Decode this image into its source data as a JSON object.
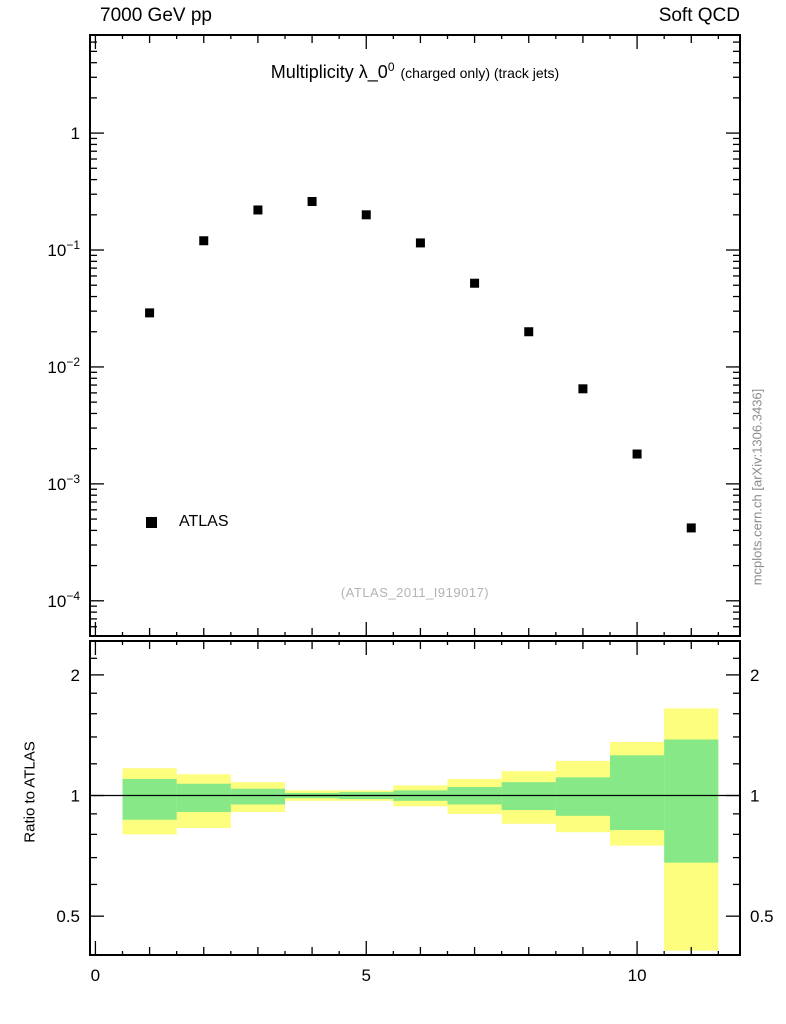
{
  "chart_data": {
    "type": "scatter",
    "header_left": "7000 GeV pp",
    "header_right": "Soft QCD",
    "title_main": "Multiplicity λ_0",
    "title_sup": "0",
    "title_suffix": "(charged only) (track jets)",
    "watermark": "(ATLAS_2011_I919017)",
    "side_caption": "mcplots.cern.ch [arXiv:1306.3436]",
    "series": [
      {
        "name": "ATLAS",
        "marker": "filled-square",
        "color": "#000000",
        "x": [
          1,
          2,
          3,
          4,
          5,
          6,
          7,
          8,
          9,
          10,
          11
        ],
        "y": [
          0.029,
          0.12,
          0.22,
          0.26,
          0.2,
          0.115,
          0.052,
          0.02,
          0.0065,
          0.0018,
          0.00042
        ]
      }
    ],
    "x_axis": {
      "range": [
        -0.1,
        11.9
      ],
      "major_ticks": [
        0,
        5,
        10
      ],
      "labels": [
        "0",
        "5",
        "10"
      ]
    },
    "y_axis": {
      "scale": "log",
      "range": [
        5e-05,
        6.9
      ],
      "ticks": [
        {
          "v": 1,
          "label": "1"
        },
        {
          "v": 0.1,
          "base": "10",
          "exp": "−1"
        },
        {
          "v": 0.01,
          "base": "10",
          "exp": "−2"
        },
        {
          "v": 0.001,
          "base": "10",
          "exp": "−3"
        },
        {
          "v": 0.0001,
          "base": "10",
          "exp": "−4"
        }
      ]
    },
    "ratio_panel": {
      "ylabel": "Ratio to ATLAS",
      "scale": "log",
      "range": [
        0.4,
        2.43
      ],
      "reference_line": 1,
      "ticks": [
        {
          "v": 2,
          "label": "2"
        },
        {
          "v": 1,
          "label": "1"
        },
        {
          "v": 0.5,
          "label": "0.5"
        }
      ],
      "minor_ticks": [
        0.4,
        0.6,
        0.7,
        0.8,
        0.9,
        1.2,
        1.4,
        1.6,
        1.8,
        2.2
      ],
      "bands": {
        "bin_edges": [
          0.5,
          1.5,
          2.5,
          3.5,
          4.5,
          5.5,
          6.5,
          7.5,
          8.5,
          9.5,
          10.5,
          11.5
        ],
        "yellow": {
          "color": "#fdfd7e",
          "lo": [
            0.8,
            0.83,
            0.91,
            0.97,
            0.97,
            0.94,
            0.9,
            0.85,
            0.81,
            0.75,
            0.41
          ],
          "hi": [
            1.17,
            1.13,
            1.08,
            1.03,
            1.03,
            1.06,
            1.1,
            1.15,
            1.22,
            1.36,
            1.65
          ]
        },
        "green": {
          "color": "#86e886",
          "lo": [
            0.87,
            0.91,
            0.95,
            0.985,
            0.98,
            0.97,
            0.95,
            0.92,
            0.89,
            0.82,
            0.68
          ],
          "hi": [
            1.1,
            1.07,
            1.04,
            1.015,
            1.02,
            1.03,
            1.05,
            1.08,
            1.11,
            1.26,
            1.38
          ]
        }
      }
    }
  }
}
